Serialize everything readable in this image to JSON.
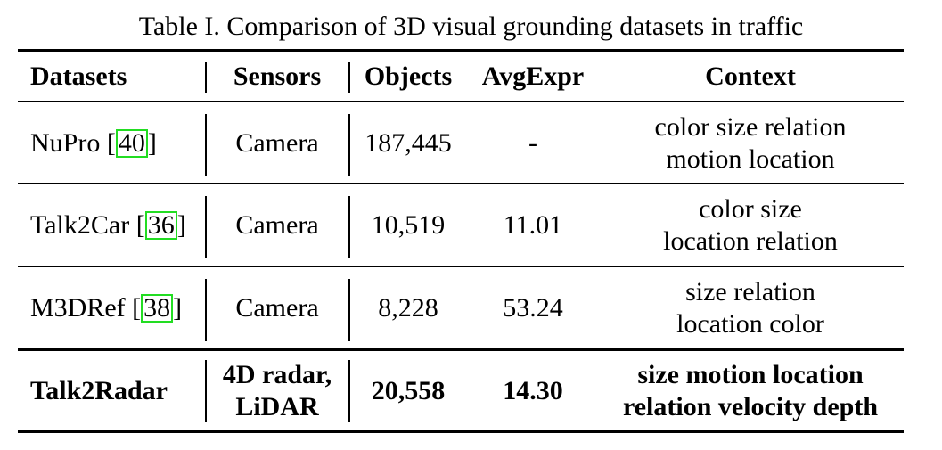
{
  "caption": "Table I. Comparison of 3D visual grounding datasets in traffic",
  "header": {
    "datasets": "Datasets",
    "sensors": "Sensors",
    "objects": "Objects",
    "avgexpr": "AvgExpr",
    "context": "Context"
  },
  "rows": [
    {
      "name": "NuPro",
      "ref": "40",
      "sensors": [
        "Camera"
      ],
      "objects": "187,445",
      "avgexpr": "-",
      "context": [
        "color size relation",
        "motion location"
      ]
    },
    {
      "name": "Talk2Car",
      "ref": "36",
      "sensors": [
        "Camera"
      ],
      "objects": "10,519",
      "avgexpr": "11.01",
      "context": [
        "color size",
        "location relation"
      ]
    },
    {
      "name": "M3DRef",
      "ref": "38",
      "sensors": [
        "Camera"
      ],
      "objects": "8,228",
      "avgexpr": "53.24",
      "context": [
        "size relation",
        "location color"
      ]
    },
    {
      "name": "Talk2Radar",
      "ref": "",
      "sensors": [
        "4D radar,",
        "LiDAR"
      ],
      "objects": "20,558",
      "avgexpr": "14.30",
      "context": [
        "size motion location",
        "relation velocity depth"
      ]
    }
  ],
  "colors": {
    "citation_box": "#22dd22",
    "text": "#000000",
    "background": "#ffffff"
  }
}
